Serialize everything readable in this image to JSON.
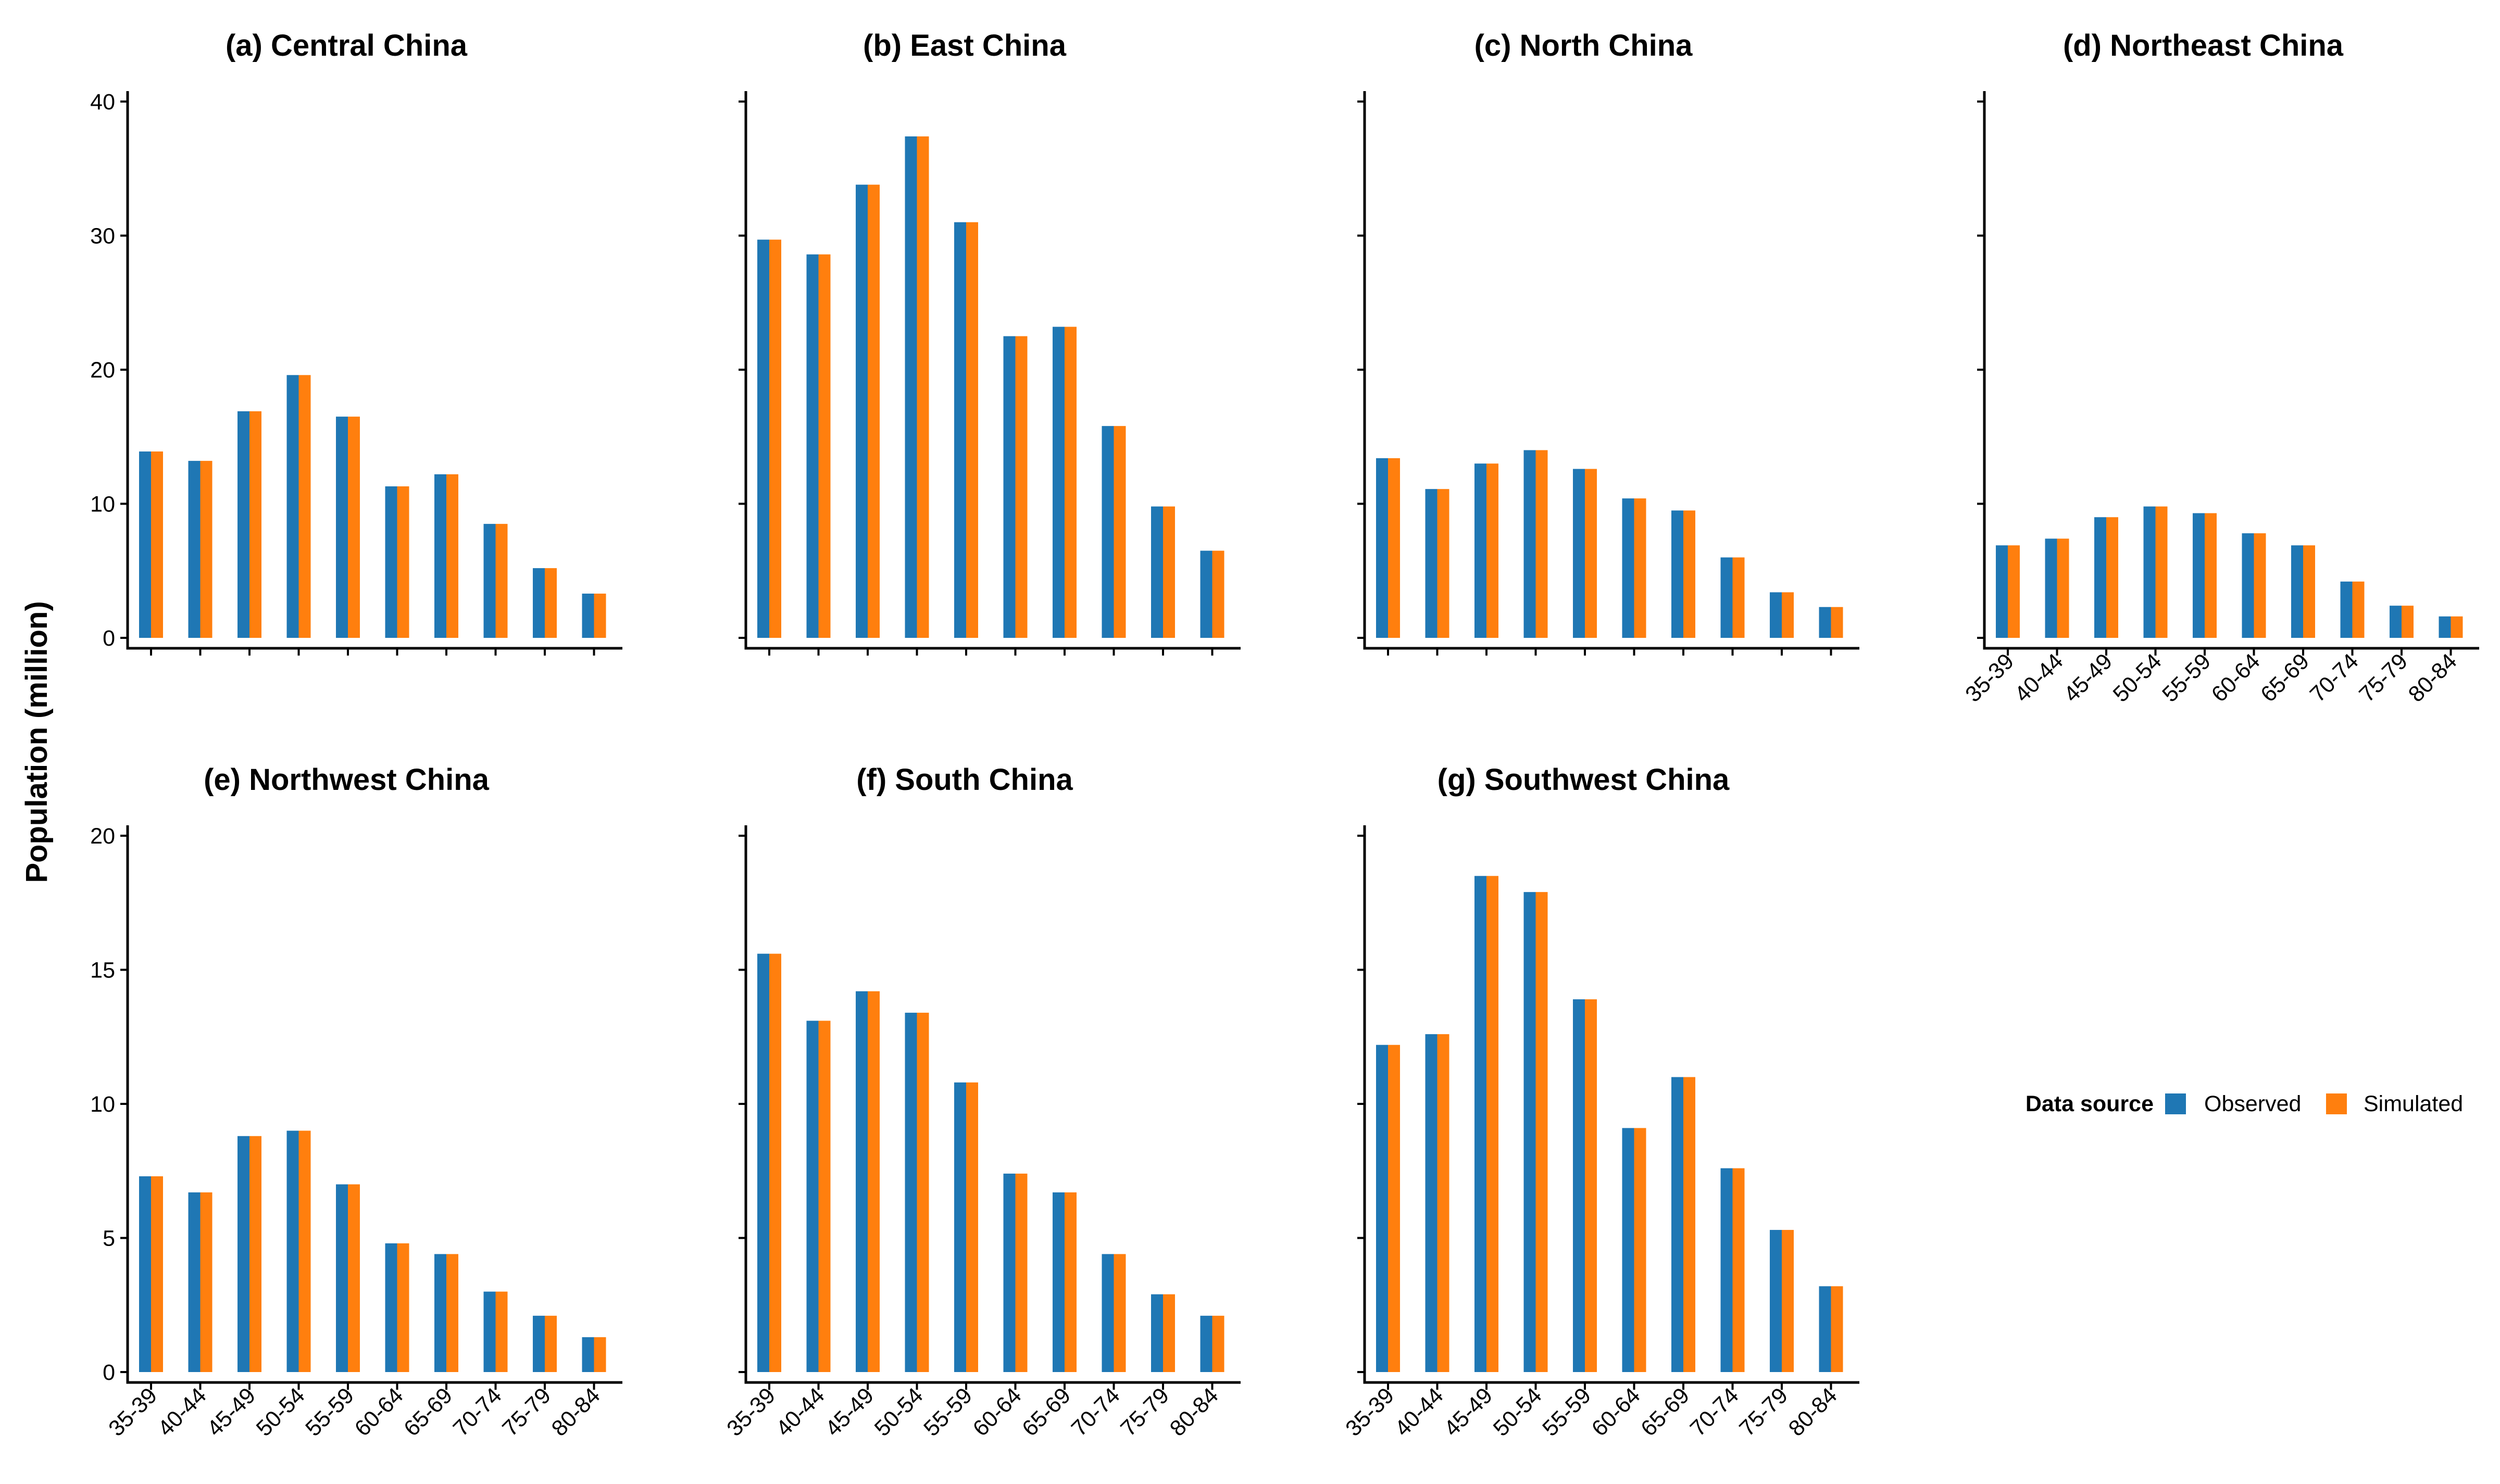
{
  "y_axis_label": "Population (million)",
  "legend": {
    "title": "Data source",
    "items": [
      {
        "label": "Observed",
        "color": "#1f77b4"
      },
      {
        "label": "Simulated",
        "color": "#ff7f0e"
      }
    ]
  },
  "chart_data": [
    {
      "type": "bar",
      "title": "(a) Central China",
      "categories": [
        "35-39",
        "40-44",
        "45-49",
        "50-54",
        "55-59",
        "60-64",
        "65-69",
        "70-74",
        "75-79",
        "80-84"
      ],
      "series": [
        {
          "name": "Observed",
          "values": [
            13.9,
            13.2,
            16.9,
            19.6,
            16.5,
            11.3,
            12.2,
            8.5,
            5.2,
            3.3
          ]
        },
        {
          "name": "Simulated",
          "values": [
            13.9,
            13.2,
            16.9,
            19.6,
            16.5,
            11.3,
            12.2,
            8.5,
            5.2,
            3.3
          ]
        }
      ],
      "ylim": [
        0,
        40
      ],
      "yticks": [
        0,
        10,
        20,
        30,
        40
      ],
      "show_y_tick_labels": true,
      "show_x_tick_labels": false
    },
    {
      "type": "bar",
      "title": "(b) East China",
      "categories": [
        "35-39",
        "40-44",
        "45-49",
        "50-54",
        "55-59",
        "60-64",
        "65-69",
        "70-74",
        "75-79",
        "80-84"
      ],
      "series": [
        {
          "name": "Observed",
          "values": [
            29.7,
            28.6,
            33.8,
            37.4,
            31.0,
            22.5,
            23.2,
            15.8,
            9.8,
            6.5
          ]
        },
        {
          "name": "Simulated",
          "values": [
            29.7,
            28.6,
            33.8,
            37.4,
            31.0,
            22.5,
            23.2,
            15.8,
            9.8,
            6.5
          ]
        }
      ],
      "ylim": [
        0,
        40
      ],
      "yticks": [
        0,
        10,
        20,
        30,
        40
      ],
      "show_y_tick_labels": false,
      "show_x_tick_labels": false
    },
    {
      "type": "bar",
      "title": "(c) North China",
      "categories": [
        "35-39",
        "40-44",
        "45-49",
        "50-54",
        "55-59",
        "60-64",
        "65-69",
        "70-74",
        "75-79",
        "80-84"
      ],
      "series": [
        {
          "name": "Observed",
          "values": [
            13.4,
            11.1,
            13.0,
            14.0,
            12.6,
            10.4,
            9.5,
            6.0,
            3.4,
            2.3
          ]
        },
        {
          "name": "Simulated",
          "values": [
            13.4,
            11.1,
            13.0,
            14.0,
            12.6,
            10.4,
            9.5,
            6.0,
            3.4,
            2.3
          ]
        }
      ],
      "ylim": [
        0,
        40
      ],
      "yticks": [
        0,
        10,
        20,
        30,
        40
      ],
      "show_y_tick_labels": false,
      "show_x_tick_labels": false
    },
    {
      "type": "bar",
      "title": "(d) Northeast China",
      "categories": [
        "35-39",
        "40-44",
        "45-49",
        "50-54",
        "55-59",
        "60-64",
        "65-69",
        "70-74",
        "75-79",
        "80-84"
      ],
      "series": [
        {
          "name": "Observed",
          "values": [
            6.9,
            7.4,
            9.0,
            9.8,
            9.3,
            7.8,
            6.9,
            4.2,
            2.4,
            1.6
          ]
        },
        {
          "name": "Simulated",
          "values": [
            6.9,
            7.4,
            9.0,
            9.8,
            9.3,
            7.8,
            6.9,
            4.2,
            2.4,
            1.6
          ]
        }
      ],
      "ylim": [
        0,
        40
      ],
      "yticks": [
        0,
        10,
        20,
        30,
        40
      ],
      "show_y_tick_labels": false,
      "show_x_tick_labels": true
    },
    {
      "type": "bar",
      "title": "(e) Northwest China",
      "categories": [
        "35-39",
        "40-44",
        "45-49",
        "50-54",
        "55-59",
        "60-64",
        "65-69",
        "70-74",
        "75-79",
        "80-84"
      ],
      "series": [
        {
          "name": "Observed",
          "values": [
            7.3,
            6.7,
            8.8,
            9.0,
            7.0,
            4.8,
            4.4,
            3.0,
            2.1,
            1.3
          ]
        },
        {
          "name": "Simulated",
          "values": [
            7.3,
            6.7,
            8.8,
            9.0,
            7.0,
            4.8,
            4.4,
            3.0,
            2.1,
            1.3
          ]
        }
      ],
      "ylim": [
        0,
        20
      ],
      "yticks": [
        0,
        5,
        10,
        15,
        20
      ],
      "show_y_tick_labels": true,
      "show_x_tick_labels": true
    },
    {
      "type": "bar",
      "title": "(f) South China",
      "categories": [
        "35-39",
        "40-44",
        "45-49",
        "50-54",
        "55-59",
        "60-64",
        "65-69",
        "70-74",
        "75-79",
        "80-84"
      ],
      "series": [
        {
          "name": "Observed",
          "values": [
            15.6,
            13.1,
            14.2,
            13.4,
            10.8,
            7.4,
            6.7,
            4.4,
            2.9,
            2.1
          ]
        },
        {
          "name": "Simulated",
          "values": [
            15.6,
            13.1,
            14.2,
            13.4,
            10.8,
            7.4,
            6.7,
            4.4,
            2.9,
            2.1
          ]
        }
      ],
      "ylim": [
        0,
        20
      ],
      "yticks": [
        0,
        5,
        10,
        15,
        20
      ],
      "show_y_tick_labels": false,
      "show_x_tick_labels": true
    },
    {
      "type": "bar",
      "title": "(g) Southwest China",
      "categories": [
        "35-39",
        "40-44",
        "45-49",
        "50-54",
        "55-59",
        "60-64",
        "65-69",
        "70-74",
        "75-79",
        "80-84"
      ],
      "series": [
        {
          "name": "Observed",
          "values": [
            12.2,
            12.6,
            18.5,
            17.9,
            13.9,
            9.1,
            11.0,
            7.6,
            5.3,
            3.2
          ]
        },
        {
          "name": "Simulated",
          "values": [
            12.2,
            12.6,
            18.5,
            17.9,
            13.9,
            9.1,
            11.0,
            7.6,
            5.3,
            3.2
          ]
        }
      ],
      "ylim": [
        0,
        20
      ],
      "yticks": [
        0,
        5,
        10,
        15,
        20
      ],
      "show_y_tick_labels": false,
      "show_x_tick_labels": true
    }
  ]
}
